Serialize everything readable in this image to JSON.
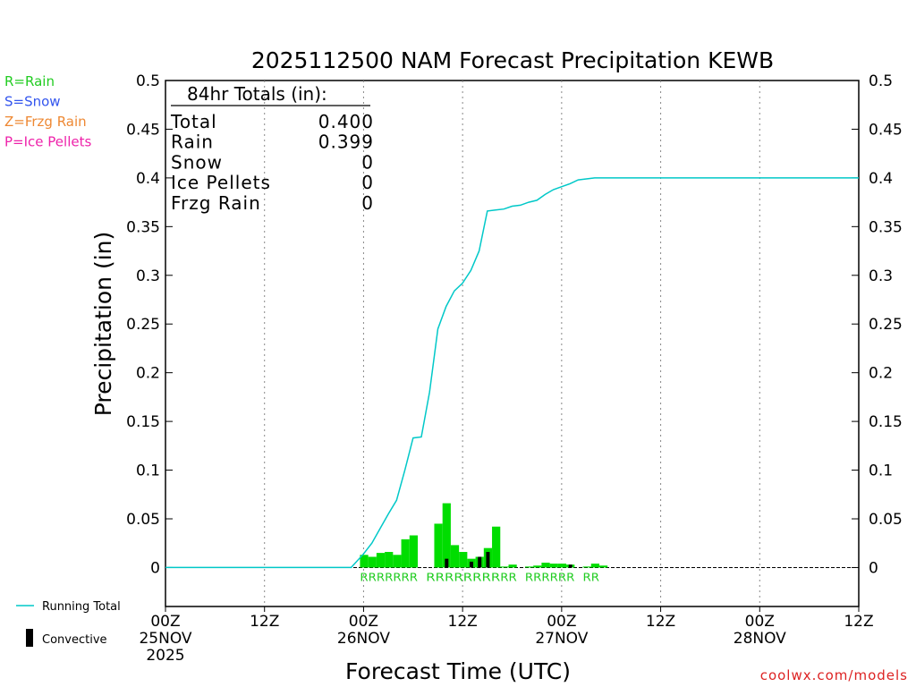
{
  "chart_data": {
    "type": "bar",
    "title": "2025112500 NAM Forecast Precipitation KEWB",
    "ylabel": "Precipitation (in)",
    "xlabel": "Forecast Time (UTC)",
    "ylim": [
      -0.04,
      0.5
    ],
    "y_ticks": [
      0,
      0.05,
      0.1,
      0.15,
      0.2,
      0.25,
      0.3,
      0.35,
      0.4,
      0.45,
      0.5
    ],
    "x_range_hours": [
      0,
      84
    ],
    "x_ticks": [
      {
        "hour": 0,
        "line1": "00Z",
        "line2": "25NOV",
        "line3": "2025"
      },
      {
        "hour": 12,
        "line1": "12Z",
        "line2": "",
        "line3": ""
      },
      {
        "hour": 24,
        "line1": "00Z",
        "line2": "26NOV",
        "line3": ""
      },
      {
        "hour": 36,
        "line1": "12Z",
        "line2": "",
        "line3": ""
      },
      {
        "hour": 48,
        "line1": "00Z",
        "line2": "27NOV",
        "line3": ""
      },
      {
        "hour": 60,
        "line1": "12Z",
        "line2": "",
        "line3": ""
      },
      {
        "hour": 72,
        "line1": "00Z",
        "line2": "28NOV",
        "line3": ""
      },
      {
        "hour": 84,
        "line1": "12Z",
        "line2": "",
        "line3": ""
      }
    ],
    "grid": "vertical dotted at each 12h tick",
    "series": [
      {
        "name": "Rain",
        "color": "#00dd00",
        "hours": [
          24,
          25,
          26,
          27,
          28,
          29,
          30,
          31,
          33,
          34,
          35,
          36,
          37,
          38,
          39,
          40,
          41,
          42,
          44,
          45,
          46,
          47,
          48,
          49,
          50,
          51,
          52,
          53,
          54
        ],
        "values": [
          0.013,
          0.011,
          0.015,
          0.016,
          0.013,
          0.029,
          0.033,
          0.0,
          0.045,
          0.066,
          0.023,
          0.016,
          0.009,
          0.011,
          0.02,
          0.042,
          0.001,
          0.003,
          0.001,
          0.002,
          0.005,
          0.004,
          0.004,
          0.003,
          0.0,
          0.001,
          0.004,
          0.002,
          0.0
        ]
      },
      {
        "name": "Convective",
        "color": "#000000",
        "hours": [
          34,
          37,
          38,
          39,
          49
        ],
        "values": [
          0.009,
          0.006,
          0.011,
          0.016,
          0.003
        ]
      },
      {
        "name": "Running Total",
        "color": "#00c8c8",
        "hours": [
          0,
          22.5,
          24,
          25,
          26,
          27,
          28,
          29,
          30,
          31,
          32,
          33,
          34,
          35,
          36,
          37,
          38,
          39,
          40,
          41,
          42,
          43,
          44,
          45,
          46,
          47,
          48,
          49,
          50,
          51,
          52,
          84
        ],
        "values": [
          0,
          0,
          0.014,
          0.025,
          0.04,
          0.055,
          0.069,
          0.1,
          0.133,
          0.134,
          0.18,
          0.245,
          0.268,
          0.284,
          0.292,
          0.305,
          0.325,
          0.366,
          0.367,
          0.368,
          0.371,
          0.372,
          0.375,
          0.377,
          0.383,
          0.388,
          0.391,
          0.394,
          0.398,
          0.399,
          0.4,
          0.4
        ]
      }
    ],
    "ptype_markers": [
      {
        "hour_start": 24,
        "hour_end": 30,
        "text": "RRRRRRR"
      },
      {
        "hour_start": 32,
        "hour_end": 40,
        "text": "RRRRRRRR"
      },
      {
        "hour_start": 41,
        "hour_end": 42,
        "text": "RR"
      },
      {
        "hour_start": 44,
        "hour_end": 49,
        "text": "RRRRRR"
      },
      {
        "hour_start": 51,
        "hour_end": 52,
        "text": "RR"
      }
    ],
    "totals_box": {
      "header": "84hr Totals (in):",
      "rows": [
        {
          "label": "Total",
          "value": "0.400"
        },
        {
          "label": "Rain",
          "value": "0.399"
        },
        {
          "label": "Snow",
          "value": "0"
        },
        {
          "label": "Ice Pellets",
          "value": "0"
        },
        {
          "label": "Frzg Rain",
          "value": "0"
        }
      ]
    },
    "ptype_legend": [
      {
        "text": "R=Rain",
        "color": "#22cc22"
      },
      {
        "text": "S=Snow",
        "color": "#3355ee"
      },
      {
        "text": "Z=Frzg Rain",
        "color": "#ee8833"
      },
      {
        "text": "P=Ice Pellets",
        "color": "#ee22aa"
      }
    ],
    "legend": {
      "running_total": "Running Total",
      "convective": "Convective"
    },
    "credit": "coolwx.com/models"
  }
}
